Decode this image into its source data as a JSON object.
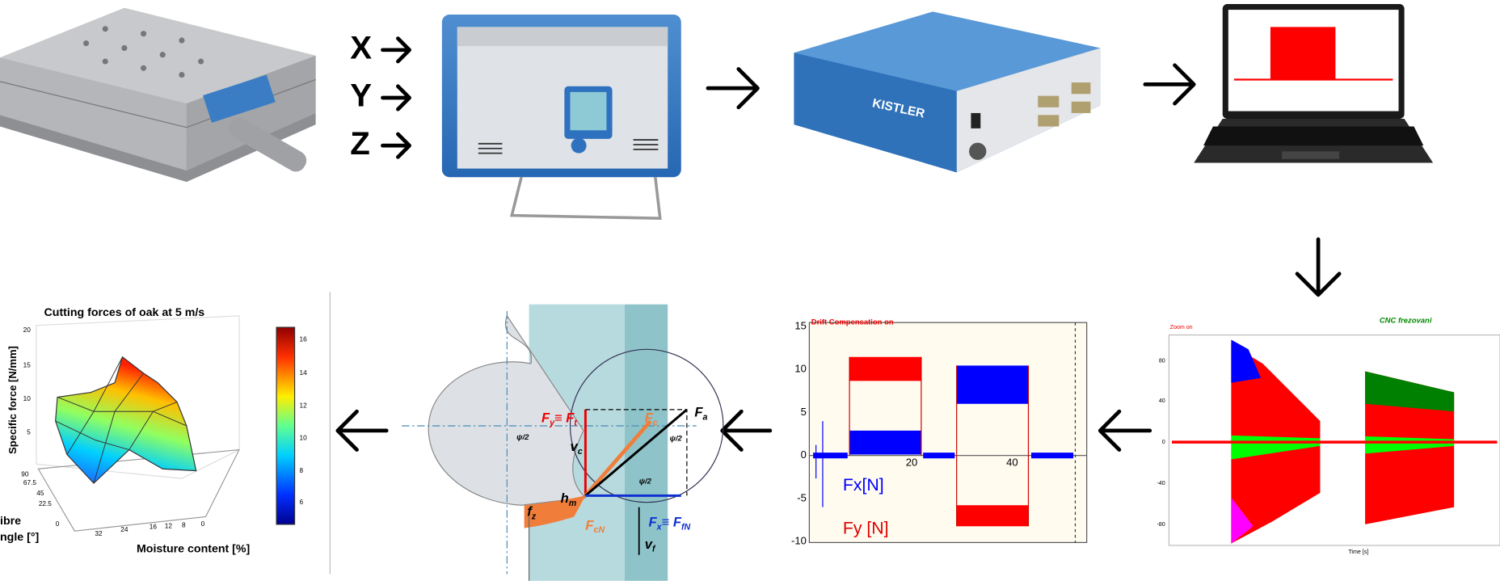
{
  "input_axes": [
    "X",
    "Y",
    "Z"
  ],
  "daq_label": "KISTLER",
  "raw_plot": {
    "title_left": "Zoom on",
    "title_right": "CNC frezovani",
    "yticks": [
      "80",
      "40",
      "0",
      "-40",
      "-80"
    ],
    "xlabel": "Time [s]"
  },
  "drift_plot": {
    "title": "Drift Compensation on",
    "yticks": [
      "15",
      "10",
      "5",
      "0",
      "-5",
      "-10"
    ],
    "xticks": [
      "20",
      "40"
    ],
    "legend": [
      "Fx[N]",
      "Fy [N]"
    ]
  },
  "cutting_diagram": {
    "labels": [
      [
        "F",
        "y",
        "≡ F",
        "t"
      ],
      [
        "F",
        "c"
      ],
      [
        "F",
        "a"
      ],
      [
        "v",
        "c"
      ],
      [
        "ψ/2"
      ],
      [
        "ψ/2"
      ],
      [
        "ψ/2"
      ],
      [
        "h",
        "m"
      ],
      [
        "f",
        "z"
      ],
      [
        "F",
        "cN"
      ],
      [
        "F",
        "x",
        "≡ F",
        "fN"
      ],
      [
        "v",
        "f"
      ]
    ]
  },
  "surface_plot": {
    "title": "Cutting forces of oak at 5 m/s",
    "zlabel": "Specific force [N/mm]",
    "zticks": [
      "20",
      "15",
      "10",
      "5"
    ],
    "ylabel": [
      "ibre",
      "ngle [°]"
    ],
    "yticks": [
      "90",
      "67.5",
      "45",
      "22.5",
      "0"
    ],
    "xlabel": "Moisture content [%]",
    "xticks": [
      "32",
      "24",
      "16",
      "12",
      "8",
      "0"
    ],
    "colorbar_ticks": [
      "16",
      "14",
      "12",
      "10",
      "8",
      "6"
    ]
  }
}
